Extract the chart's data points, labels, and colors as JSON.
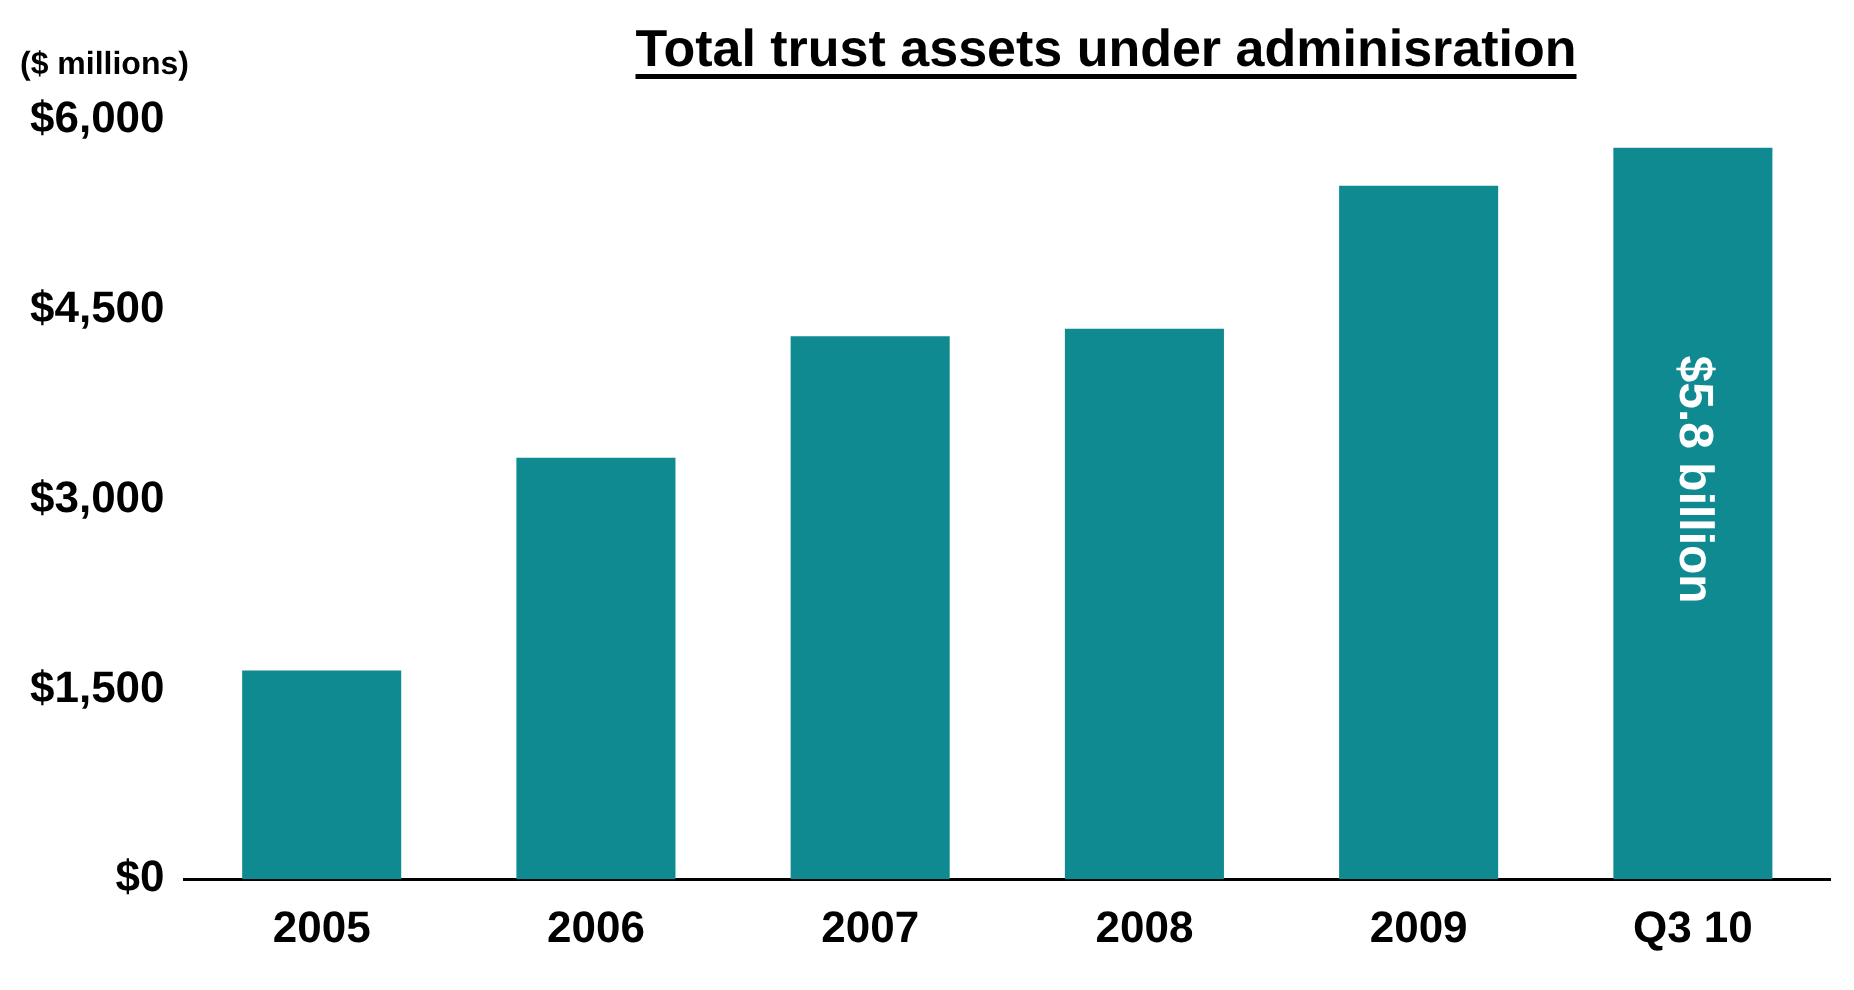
{
  "chart_data": {
    "type": "bar",
    "title": "Total trust assets under adminisration",
    "ylabel": "($ millions)",
    "categories": [
      "2005",
      "2006",
      "2007",
      "2008",
      "2009",
      "Q3 10"
    ],
    "values": [
      1650,
      3330,
      4290,
      4350,
      5480,
      5780
    ],
    "color": "#0e8a90",
    "ylim": [
      0,
      6000
    ],
    "yticks": [
      {
        "value": 0,
        "label": "$0"
      },
      {
        "value": 1500,
        "label": "$1,500"
      },
      {
        "value": 3000,
        "label": "$3,000"
      },
      {
        "value": 4500,
        "label": "$4,500"
      },
      {
        "value": 6000,
        "label": "$6,000"
      }
    ],
    "grid": false,
    "legend": false,
    "annotations": [
      "$5.8 billion"
    ]
  }
}
